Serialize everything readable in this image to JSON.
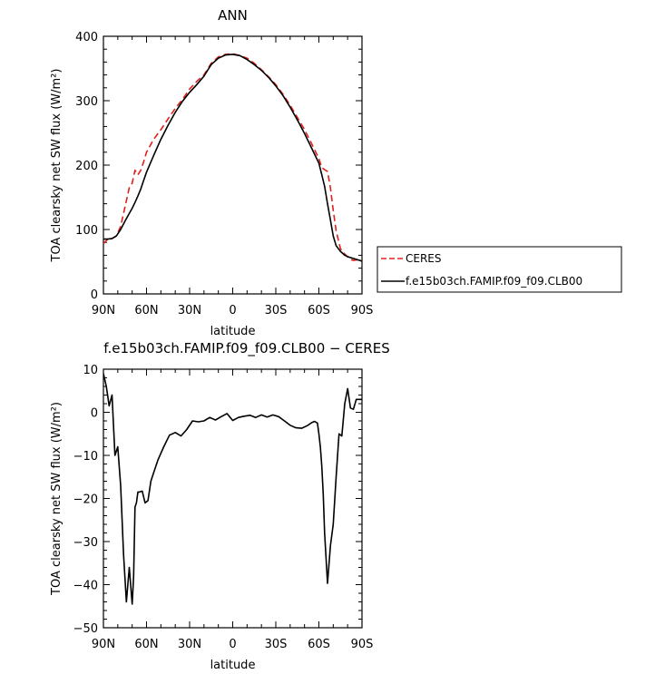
{
  "chart_data": [
    {
      "type": "line",
      "title": "ANN",
      "xlabel": "latitude",
      "ylabel": "TOA clearsky net SW flux (W/m²)",
      "xlim": [
        90,
        -90
      ],
      "ylim": [
        0,
        400
      ],
      "xticks": [
        90,
        60,
        30,
        0,
        -30,
        -60,
        -90
      ],
      "xtick_labels": [
        "90N",
        "60N",
        "30N",
        "0",
        "30S",
        "60S",
        "90S"
      ],
      "yticks": [
        0,
        100,
        200,
        300,
        400
      ],
      "ytick_labels": [
        "0",
        "100",
        "200",
        "300",
        "400"
      ],
      "legend": "right-outside",
      "series": [
        {
          "name": "CERES",
          "color": "#e0201b",
          "dash": "dashed",
          "x": [
            90,
            87,
            84,
            81,
            78,
            75,
            72,
            70,
            68,
            66,
            64,
            62,
            60,
            55,
            50,
            45,
            40,
            35,
            30,
            25,
            20,
            15,
            10,
            5,
            0,
            -5,
            -10,
            -15,
            -20,
            -25,
            -30,
            -35,
            -40,
            -45,
            -50,
            -55,
            -60,
            -62,
            -64,
            -66,
            -68,
            -70,
            -72,
            -75,
            -78,
            -81,
            -84,
            -87,
            -90
          ],
          "y": [
            78,
            85,
            86,
            90,
            105,
            135,
            165,
            172,
            192,
            185,
            192,
            205,
            220,
            240,
            255,
            272,
            288,
            302,
            318,
            330,
            340,
            358,
            368,
            372,
            373,
            370,
            366,
            358,
            348,
            337,
            325,
            310,
            293,
            274,
            255,
            233,
            210,
            196,
            193,
            190,
            165,
            130,
            98,
            70,
            62,
            55,
            52,
            53,
            51
          ]
        },
        {
          "name": "f.e15b03ch.FAMIP.f09_f09.CLB00",
          "color": "#000000",
          "dash": "solid",
          "x": [
            90,
            87,
            84,
            81,
            78,
            75,
            72,
            70,
            68,
            66,
            64,
            62,
            60,
            55,
            50,
            45,
            40,
            35,
            30,
            25,
            20,
            15,
            10,
            5,
            0,
            -5,
            -10,
            -15,
            -20,
            -25,
            -30,
            -35,
            -40,
            -45,
            -50,
            -55,
            -60,
            -62,
            -64,
            -66,
            -68,
            -70,
            -72,
            -75,
            -78,
            -81,
            -84,
            -87,
            -90
          ],
          "y": [
            85,
            85,
            86,
            90,
            100,
            113,
            125,
            133,
            142,
            152,
            163,
            176,
            189,
            215,
            240,
            262,
            282,
            299,
            313,
            325,
            338,
            356,
            366,
            371,
            372,
            370,
            364,
            356,
            347,
            336,
            323,
            308,
            290,
            270,
            249,
            226,
            203,
            185,
            167,
            140,
            115,
            90,
            75,
            66,
            60,
            57,
            55,
            53,
            51
          ]
        }
      ]
    },
    {
      "type": "line",
      "title": "f.e15b03ch.FAMIP.f09_f09.CLB00 − CERES",
      "xlabel": "latitude",
      "ylabel": "TOA clearsky net SW flux (W/m²)",
      "xlim": [
        90,
        -90
      ],
      "ylim": [
        -50,
        10
      ],
      "xticks": [
        90,
        60,
        30,
        0,
        -30,
        -60,
        -90
      ],
      "xtick_labels": [
        "90N",
        "60N",
        "30N",
        "0",
        "30S",
        "60S",
        "90S"
      ],
      "yticks": [
        -50,
        -40,
        -30,
        -20,
        -10,
        0,
        10
      ],
      "ytick_labels": [
        "−50",
        "−40",
        "−30",
        "−20",
        "−10",
        "0",
        "10"
      ],
      "series": [
        {
          "color": "#000000",
          "dash": "solid",
          "x": [
            90,
            88,
            86,
            84,
            82,
            80,
            78,
            76,
            74,
            72,
            70,
            69,
            68,
            67,
            66,
            65,
            63,
            61,
            59,
            57,
            55,
            52,
            48,
            44,
            40,
            36,
            32,
            28,
            24,
            20,
            16,
            12,
            8,
            4,
            0,
            -4,
            -8,
            -12,
            -16,
            -20,
            -24,
            -28,
            -32,
            -36,
            -40,
            -44,
            -48,
            -52,
            -55,
            -57,
            -59,
            -60,
            -61,
            -62,
            -63,
            -64,
            -66,
            -68,
            -70,
            -72,
            -74,
            -76,
            -78,
            -80,
            -82,
            -84,
            -86,
            -88,
            -90
          ],
          "y": [
            9,
            6,
            1.5,
            4,
            -10,
            -8,
            -17,
            -33,
            -44,
            -36,
            -44.5,
            -38,
            -22,
            -21,
            -18.5,
            -18.5,
            -18.3,
            -21,
            -20.5,
            -16,
            -14,
            -11,
            -8,
            -5.3,
            -4.7,
            -5.5,
            -4,
            -2,
            -2.2,
            -2,
            -1.2,
            -1.8,
            -1,
            -0.3,
            -1.9,
            -1.2,
            -0.9,
            -0.7,
            -1.2,
            -0.6,
            -1.1,
            -0.6,
            -1,
            -2,
            -3,
            -3.6,
            -3.7,
            -3.1,
            -2.4,
            -2.1,
            -2.5,
            -5,
            -8,
            -12.5,
            -19,
            -28,
            -39.7,
            -31,
            -26,
            -15,
            -5,
            -5.5,
            2,
            5.5,
            1,
            0.7,
            3,
            3,
            3
          ]
        }
      ]
    }
  ]
}
